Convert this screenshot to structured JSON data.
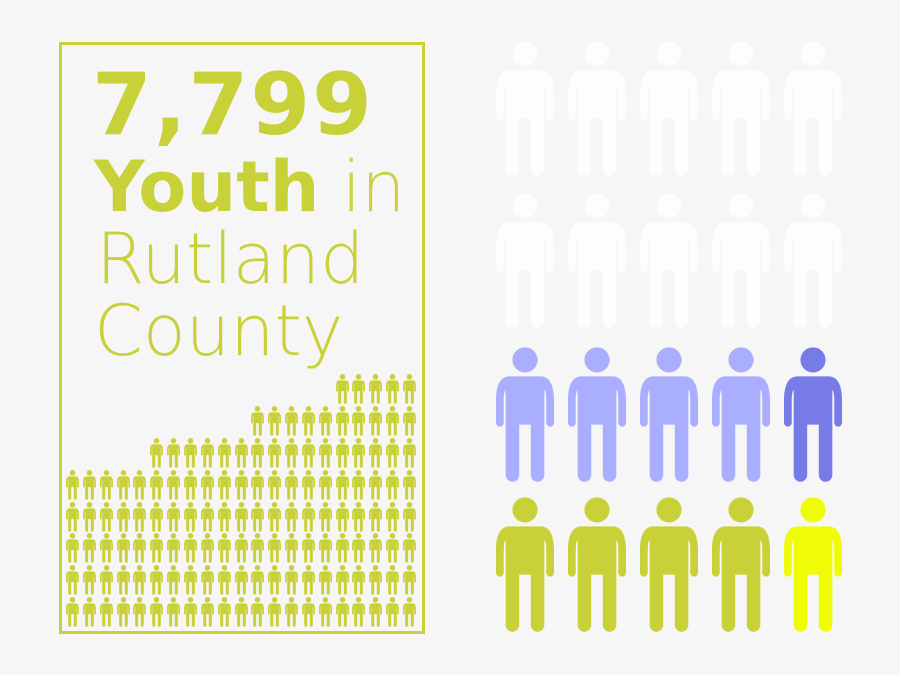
{
  "headline": {
    "number": "7,799",
    "line2_bold": "Youth",
    "line2_light": " in",
    "line3": "Rutland",
    "line4": "County"
  },
  "colors": {
    "background": "#f6f6f6",
    "accent": "#c9d139",
    "faded": "#fdfdfd",
    "lavender": "#a9aefe",
    "indigo": "#777be8",
    "yellow": "#effc05"
  },
  "small_pictogram": {
    "icon": "person-icon",
    "columns": 21,
    "rows_from_top": [
      5,
      10,
      16,
      21,
      21,
      21,
      21,
      21
    ]
  },
  "big_pictogram": {
    "icon": "person-icon",
    "rows": [
      [
        "faded",
        "faded",
        "faded",
        "faded",
        "faded"
      ],
      [
        "faded",
        "faded",
        "faded",
        "faded",
        "faded"
      ],
      [
        "lavender",
        "lavender",
        "lavender",
        "lavender",
        "indigo"
      ],
      [
        "accent",
        "accent",
        "accent",
        "accent",
        "yellow"
      ]
    ]
  }
}
